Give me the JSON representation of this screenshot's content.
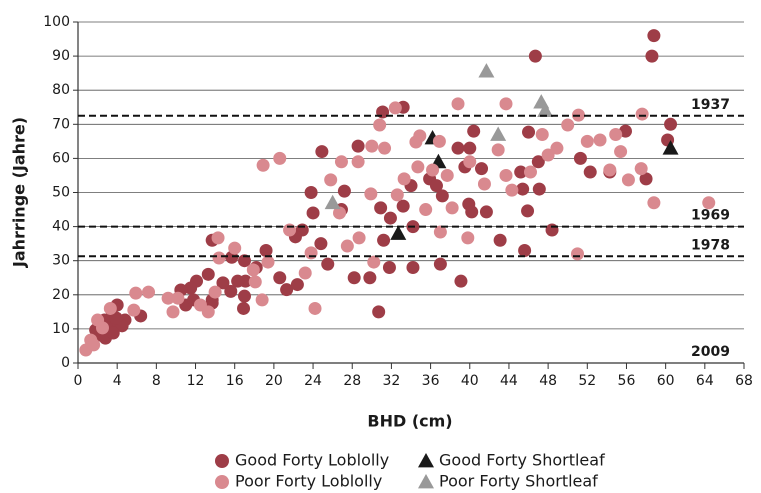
{
  "chart_data": {
    "type": "scatter",
    "x_label": "BHD (cm)",
    "y_label": "Jahrringe (Jahre)",
    "xlim": [
      0,
      68
    ],
    "ylim": [
      0,
      100
    ],
    "xticks": [
      0,
      4,
      8,
      12,
      16,
      20,
      24,
      28,
      32,
      36,
      40,
      44,
      48,
      52,
      56,
      60,
      64,
      68
    ],
    "yticks": [
      0,
      10,
      20,
      30,
      40,
      50,
      60,
      70,
      80,
      90,
      100
    ],
    "grid": true,
    "reference_lines": [
      {
        "label": "1937",
        "value": 72.5
      },
      {
        "label": "1969",
        "value": 40
      },
      {
        "label": "1978",
        "value": 31.3
      },
      {
        "label": "2009",
        "value": 0
      }
    ],
    "series": [
      {
        "name": "Good Forty Loblolly",
        "color": "#9e3d47",
        "marker": "circle",
        "x": [
          58.8,
          58.6,
          46.7,
          60.5,
          33.2,
          31.1,
          28.6,
          24.9,
          23.8,
          24,
          24.8,
          27.2,
          26.9,
          30.9,
          31.9,
          31.2,
          31.8,
          34.2,
          30.7,
          33.2,
          34,
          34.2,
          35.9,
          37,
          37.2,
          38.8,
          39.5,
          39.9,
          40.2,
          39.1,
          40.4,
          40,
          41.2,
          41.7,
          43.1,
          45.2,
          45.4,
          45.9,
          45.6,
          47,
          47.1,
          46,
          48.4,
          51.3,
          52.3,
          54.3,
          55.9,
          60.2,
          58,
          36.6,
          28.2,
          29.8,
          25.5,
          22.9,
          22.2,
          20.6,
          22.4,
          21.3,
          19.2,
          18.2,
          17,
          17,
          16.9,
          15.6,
          13.7,
          13.7,
          13.3,
          12.1,
          11.5,
          10.5,
          11,
          11.8,
          15.7,
          17.1,
          16.3,
          14.8,
          13.7,
          4.8,
          6.4,
          4,
          3.5,
          3.1,
          2.2,
          1.8,
          2.7,
          4.1,
          4.5,
          2.8,
          3.6,
          3.9
        ],
        "values": [
          96,
          90,
          90,
          70,
          75,
          73.6,
          63.6,
          62,
          50,
          44,
          35,
          50.4,
          45,
          45.5,
          42.5,
          36,
          28,
          28,
          15,
          46,
          52,
          40,
          54,
          29,
          49,
          63,
          57.5,
          46.6,
          44.3,
          24,
          68,
          63,
          57,
          44.3,
          36,
          56,
          51,
          44.6,
          33,
          59,
          51,
          67.7,
          39,
          60,
          56,
          56,
          68,
          65.4,
          54,
          52,
          25,
          25,
          29,
          39,
          37,
          25,
          23,
          21.5,
          33,
          28,
          30,
          19.6,
          16,
          21,
          36,
          18.5,
          26,
          24,
          22,
          21.4,
          17,
          18.5,
          31,
          24,
          24,
          23.5,
          17.6,
          12.6,
          13.8,
          17,
          14,
          10.9,
          8.2,
          9.7,
          12.6,
          12,
          10.9,
          7.3,
          8.8,
          13.2
        ]
      },
      {
        "name": "Good Forty Shortleaf",
        "color": "#1a1a1a",
        "marker": "triangle",
        "x": [
          36.2,
          36.8,
          32.7,
          60.5
        ],
        "values": [
          66,
          59,
          38,
          63
        ]
      },
      {
        "name": "Poor Forty Loblolly",
        "color": "#d9898f",
        "marker": "circle",
        "x": [
          58.8,
          64.4,
          51,
          57.6,
          51.1,
          50,
          43.7,
          38.8,
          32.4,
          30.8,
          30,
          31.3,
          34.5,
          34.9,
          36.9,
          36.2,
          34.7,
          33.3,
          32.6,
          29.9,
          28.6,
          26.9,
          25.8,
          26.7,
          28.7,
          30.2,
          27.5,
          23.8,
          24.2,
          20.6,
          18.9,
          21.6,
          19.4,
          18.1,
          18.8,
          16,
          14.3,
          14.4,
          14,
          13.3,
          12.5,
          10.2,
          9.2,
          9.7,
          7.2,
          5.9,
          5.7,
          2,
          1.3,
          0.8,
          1.6,
          2.5,
          3.3,
          40,
          41.5,
          42.9,
          43.7,
          44.3,
          46.2,
          48,
          48.9,
          52,
          53.3,
          54.9,
          55.4,
          56.2,
          54.3,
          57.5,
          47.4,
          39.8,
          38.2,
          37.7,
          35.5,
          37,
          23.2,
          17.9
        ],
        "values": [
          47,
          47,
          32,
          73,
          72.7,
          69.8,
          76,
          76,
          74.8,
          69.8,
          63.6,
          63,
          64.8,
          66.6,
          65,
          56.6,
          57.5,
          54,
          49.3,
          49.6,
          59,
          59,
          53.7,
          44,
          36.7,
          29.6,
          34.3,
          32.3,
          16,
          60,
          58,
          39,
          29.6,
          23.8,
          18.5,
          33.7,
          36.7,
          30.8,
          20.8,
          15,
          17,
          19,
          19,
          15,
          20.8,
          20.5,
          15.5,
          12.6,
          6.7,
          3.8,
          5.3,
          10.3,
          16,
          59,
          52.5,
          62.5,
          55,
          50.7,
          56,
          61,
          63,
          65,
          65.4,
          67,
          62,
          53.7,
          56.6,
          57,
          67,
          36.7,
          45.5,
          55,
          45,
          38.4,
          26.4,
          27.3
        ]
      },
      {
        "name": "Poor Forty Shortleaf",
        "color": "#999999",
        "marker": "triangle",
        "x": [
          41.7,
          47.3,
          42.9,
          26,
          47.7
        ],
        "values": [
          85.6,
          76.5,
          67,
          47,
          74
        ]
      }
    ]
  }
}
